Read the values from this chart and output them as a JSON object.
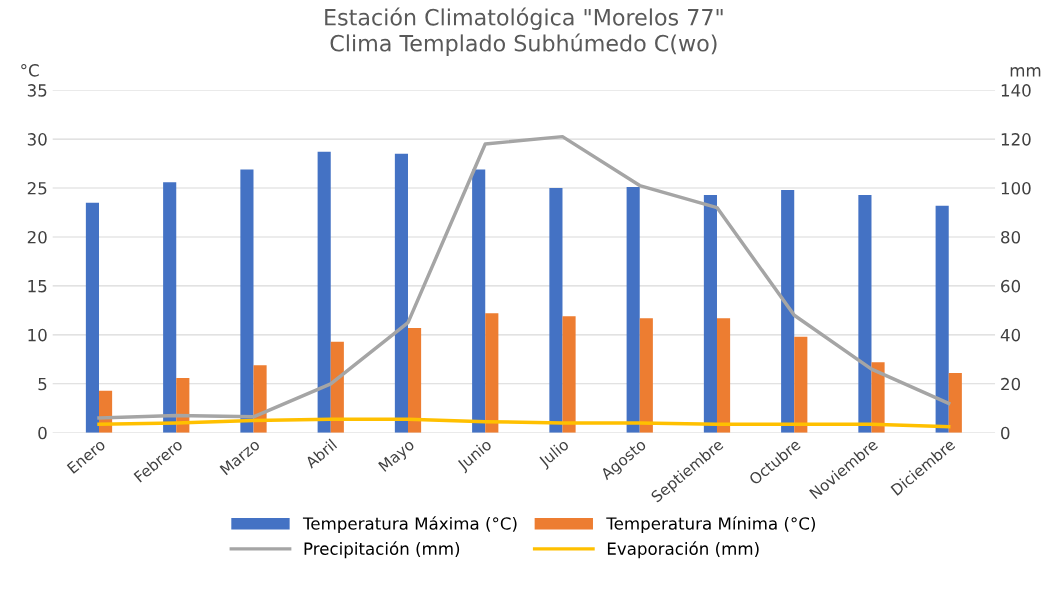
{
  "chart_data": {
    "type": "bar",
    "title": "Estación Climatológica \"Morelos 77\"\nClima Templado Subhúmedo C(wo)",
    "categories": [
      "Enero",
      "Febrero",
      "Marzo",
      "Abril",
      "Mayo",
      "Junio",
      "Julio",
      "Agosto",
      "Septiembre",
      "Octubre",
      "Noviembre",
      "Diciembre"
    ],
    "series": [
      {
        "name": "Temperatura Máxima (°C)",
        "color": "#4472c4",
        "values": [
          23.5,
          25.6,
          26.9,
          28.7,
          28.5,
          26.9,
          25.0,
          25.1,
          24.3,
          24.8,
          24.3,
          23.2
        ]
      },
      {
        "name": "Temperatura Mínima (°C)",
        "color": "#ed7d31",
        "values": [
          4.3,
          5.6,
          6.9,
          9.3,
          10.7,
          12.2,
          11.9,
          11.7,
          11.7,
          9.8,
          7.2,
          6.1
        ]
      },
      {
        "name": "Precipitación (mm)",
        "type": "line",
        "axis": "y2",
        "color": "#a5a5a5",
        "values": [
          6,
          7,
          6.5,
          20,
          45,
          118,
          121,
          101,
          92,
          48,
          26,
          12
        ]
      },
      {
        "name": "Evaporación (mm)",
        "type": "line",
        "axis": "y2",
        "color": "#ffc000",
        "values": [
          3.5,
          4,
          5,
          5.5,
          5.5,
          4.5,
          4,
          4,
          3.5,
          3.5,
          3.5,
          2.5
        ]
      }
    ],
    "ylabel": "°C",
    "y2label": "mm",
    "ylim": [
      0,
      35
    ],
    "yticks": [
      0,
      5,
      10,
      15,
      20,
      25,
      30,
      35
    ],
    "y2lim": [
      0,
      140
    ],
    "y2ticks": [
      0,
      20,
      40,
      60,
      80,
      100,
      120,
      140
    ],
    "grid": "y",
    "legend": "bottom",
    "marker": "none",
    "line_style": "solid"
  }
}
